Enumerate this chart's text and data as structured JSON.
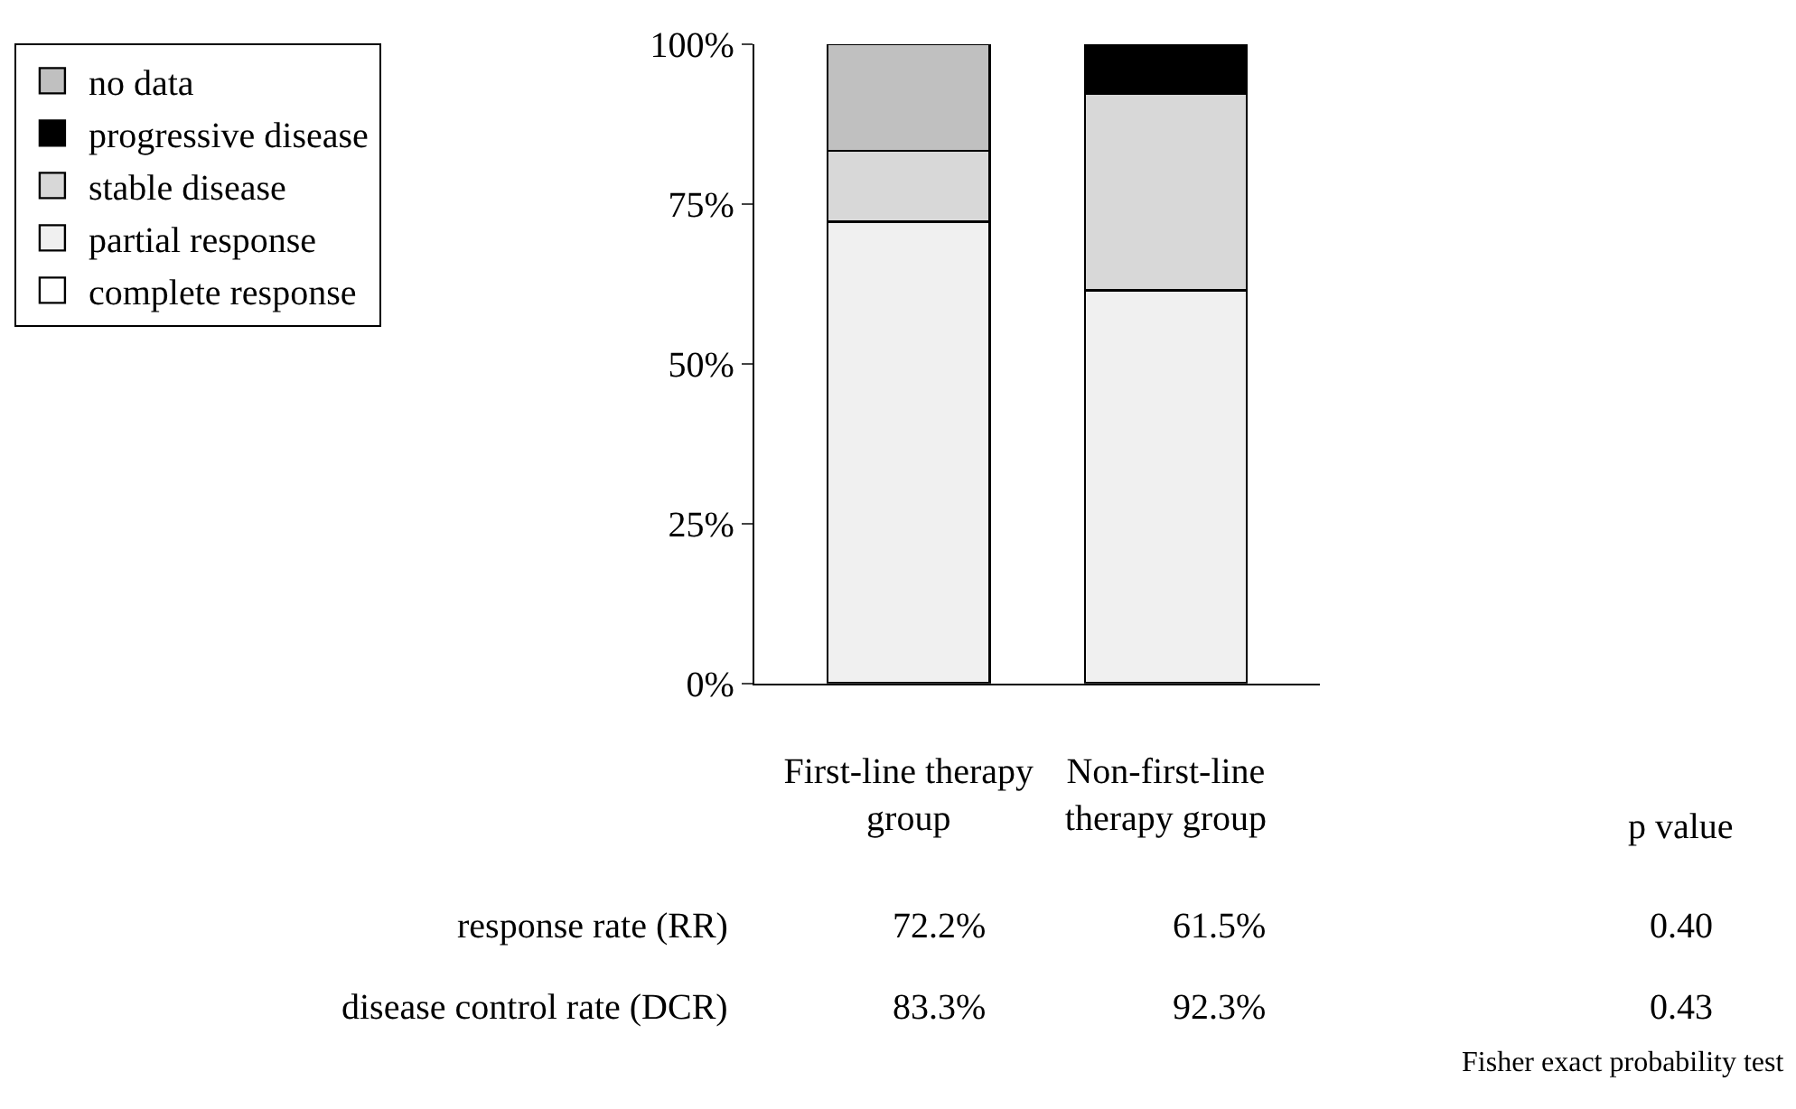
{
  "chart_data": {
    "type": "bar",
    "stacked": true,
    "legend": "top left",
    "categories": [
      "First-line therapy\ngroup",
      "Non-first-line\ntherapy group"
    ],
    "series": [
      {
        "name": "complete response",
        "color": "#ffffff",
        "values": [
          0,
          0
        ]
      },
      {
        "name": "partial response",
        "color": "#f0f0f0",
        "values": [
          72.2,
          61.5
        ]
      },
      {
        "name": "stable disease",
        "color": "#d8d8d8",
        "values": [
          11.1,
          30.8
        ]
      },
      {
        "name": "progressive disease",
        "color": "#000000",
        "values": [
          0,
          7.7
        ]
      },
      {
        "name": "no data",
        "color": "#c0c0c0",
        "values": [
          16.7,
          0
        ]
      }
    ],
    "ylim": [
      0,
      100
    ],
    "yticks": [
      {
        "value": 0,
        "label": "0%"
      },
      {
        "value": 25,
        "label": "25%"
      },
      {
        "value": 50,
        "label": "50%"
      },
      {
        "value": 75,
        "label": "75%"
      },
      {
        "value": 100,
        "label": "100%"
      }
    ],
    "annotations": [
      "p value",
      "response rate (RR)",
      "72.2%",
      "61.5%",
      "0.40",
      "disease control rate (DCR)",
      "83.3%",
      "92.3%",
      "0.43",
      "Fisher exact probability test"
    ]
  }
}
